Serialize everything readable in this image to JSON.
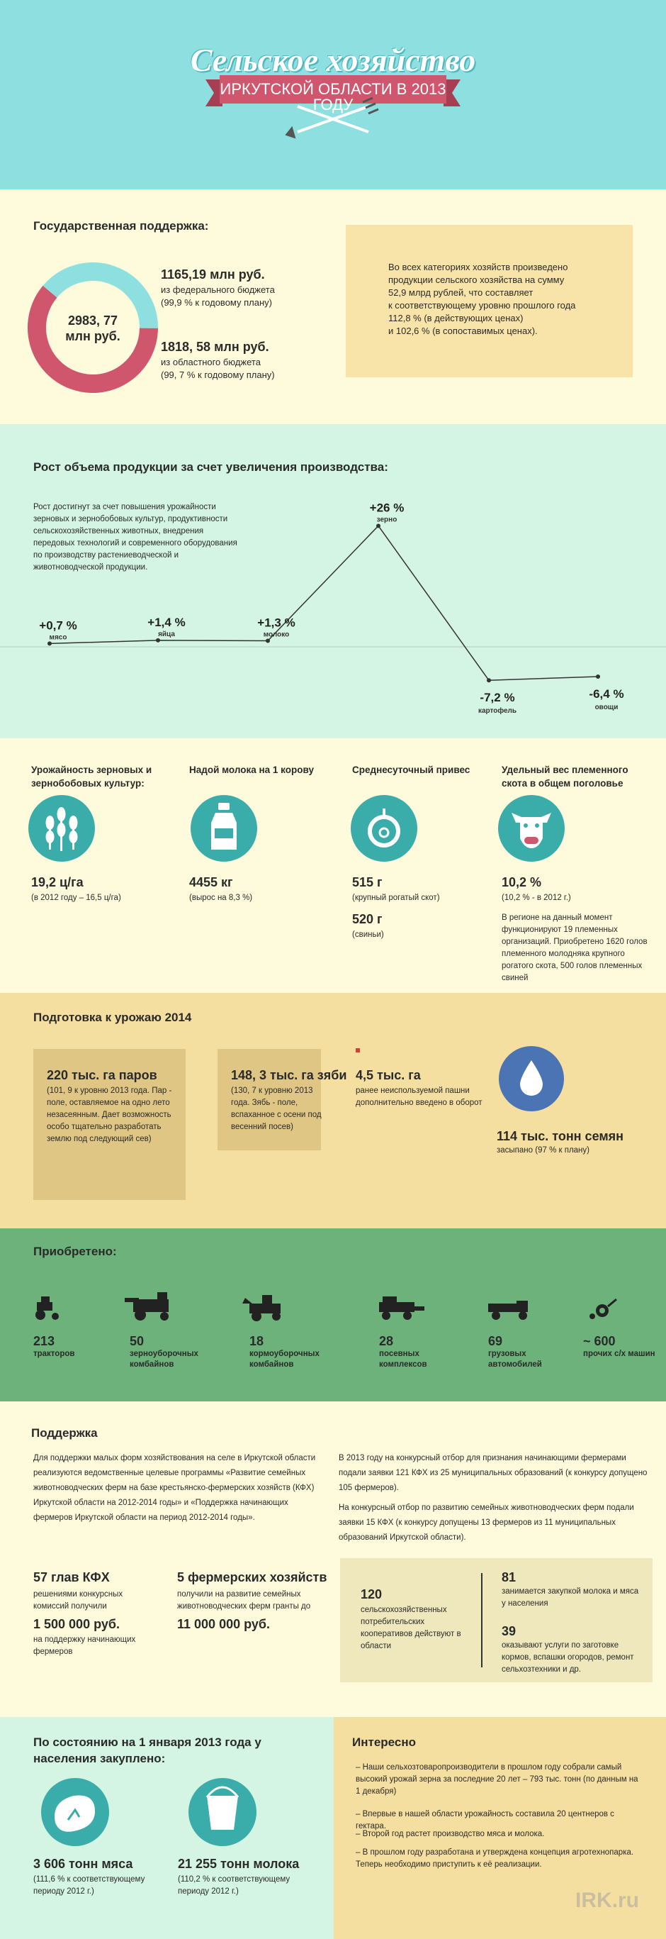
{
  "header": {
    "title": "Сельское хозяйство",
    "subtitle": "ИРКУТСКОЙ ОБЛАСТИ В 2013 ГОДУ"
  },
  "support": {
    "heading": "Государственная поддержка:",
    "donut": {
      "values": [
        1165.19,
        1818.58
      ],
      "colors": [
        "#8ee0e0",
        "#d0566e"
      ],
      "center": [
        "2983, 77",
        "млн руб."
      ]
    },
    "federal": {
      "amount": "1165,19 млн руб.",
      "source": "из федерального бюджета",
      "note": "(99,9 % к годовому плану)"
    },
    "regional": {
      "amount": "1818, 58 млн руб.",
      "source": "из областного бюджета",
      "note": "(99, 7 % к годовому плану)"
    },
    "box": {
      "lines": [
        "Во всех категориях хозяйств произведено",
        "продукции сельского хозяйства на сумму",
        "52,9 млрд рублей, что составляет",
        "к соответствующему уровню прошлого года",
        "112,8 % (в действующих ценах)",
        "и 102,6 % (в сопоставимых ценах)."
      ]
    }
  },
  "growth": {
    "heading": "Рост объема продукции за счет увеличения производства:",
    "description": [
      "Рост достигнут за счет повышения урожайности",
      "зерновых и зернобобовых культур, продуктивности",
      "сельскохозяйственных животных, внедрения",
      "передовых технологий и современного оборудования",
      "по производству растениеводческой и",
      "животноводческой продукции."
    ],
    "chart": {
      "type": "line",
      "categories": [
        "мясо",
        "яйца",
        "молоко",
        "зерно",
        "картофель",
        "овощи"
      ],
      "values": [
        0.7,
        1.4,
        1.3,
        26,
        -7.2,
        -6.4
      ],
      "value_labels": [
        "+0,7 %",
        "+1,4 %",
        "+1,3 %",
        "+26 %",
        "-7,2 %",
        "-6,4 %"
      ],
      "color": "#333333"
    }
  },
  "metrics": {
    "items": [
      {
        "heading": "Урожайность зерновых и зернобобовых культур:",
        "value": "19,2 ц/га",
        "note": "(в 2012 году – 16,5 ц/га)"
      },
      {
        "heading": "Надой молока на 1 корову",
        "value": "4455 кг",
        "note": "(вырос на 8,3 %)"
      },
      {
        "heading": "Среднесуточный привес",
        "value": "515 г",
        "note": "(крупный рогатый скот)",
        "value2": "520 г",
        "note2": "(свиньи)"
      },
      {
        "heading": "Удельный вес племенного скота в общем поголовье",
        "value": "10,2 %",
        "note": "(10,2 % - в 2012 г.)",
        "text": "В регионе на данный момент функционируют 19 племенных организаций. Приобретено 1620 голов племенного молодняка крупного рогатого скота, 500 голов племенных свиней"
      }
    ]
  },
  "harvest": {
    "heading": "Подготовка к урожаю 2014",
    "items": [
      {
        "title": "220 тыс. га паров",
        "text": "(101, 9 к уровню 2013 года. Пар - поле, оставляемое на одно лето незасеянным. Дает возможность особо тщательно разработать землю под следующий сев)"
      },
      {
        "title": "148, 3 тыс. га зяби",
        "text": "(130, 7 к уровню 2013 года. Зябь - поле, вспаханное с осени под весенний посев)"
      },
      {
        "title": "4,5 тыс. га",
        "text": "ранее неиспользуемой пашни дополнительно введено в оборот"
      },
      {
        "title": "114 тыс. тонн семян",
        "text": "засыпано (97 % к плану)"
      }
    ]
  },
  "acquired": {
    "heading": "Приобретено:",
    "items": [
      {
        "value": "213",
        "label": "тракторов"
      },
      {
        "value": "50",
        "label": "зерноуборочных комбайнов"
      },
      {
        "value": "18",
        "label": "кормоуборочных комбайнов"
      },
      {
        "value": "28",
        "label": "посевных комплексов"
      },
      {
        "value": "69",
        "label": "грузовых автомобилей"
      },
      {
        "value": "~ 600",
        "label": "прочих с/х машин"
      }
    ]
  },
  "farm_support": {
    "heading": "Поддержка",
    "left_text": "Для поддержки малых форм хозяйствования на селе в Иркутской области реализуются ведомственные целевые программы «Развитие семейных животноводческих ферм на базе крестьянско-фермерских хозяйств (КФХ) Иркутской области на 2012-2014 годы» и «Поддержка начинающих фермеров Иркутской области на период 2012-2014 годы».",
    "right_text": [
      "В 2013 году на конкурсный отбор для признания начинающими фермерами подали заявки 121 КФХ из 25 муниципальных образований (к конкурсу допущено 105 фермеров).",
      "На конкурсный отбор по развитию семейных животноводческих ферм подали заявки 15 КФХ (к конкурсу допущены 13 фермеров из 11 муниципальных образований Иркутской области)."
    ],
    "stats": [
      {
        "title": "57 глав КФХ",
        "text": "решениями конкурсных комиссий получили",
        "amount": "1 500 000 руб.",
        "amount_text": "на поддержку начинающих фермеров"
      },
      {
        "title": "5 фермерских хозяйств",
        "text": "получили на развитие семейных животноводческих ферм гранты до",
        "amount": "11 000 000 руб."
      }
    ],
    "coops": [
      {
        "value": "120",
        "text": "сельскохозяйственных потребительских кооперативов действуют в области"
      },
      {
        "value": "81",
        "text": "занимается закупкой молока и мяса у населения"
      },
      {
        "value": "39",
        "text": "оказывают услуги по заготовке кормов, вспашки огородов, ремонт сельхозтехники и др."
      }
    ]
  },
  "purchased": {
    "heading": "По состоянию на 1 января 2013 года у населения закуплено:",
    "items": [
      {
        "title": "3 606 тонн мяса",
        "note": "(111,6 % к соответствующему периоду 2012 г.)"
      },
      {
        "title": "21 255 тонн молока",
        "note": "(110,2 % к соответствующему периоду 2012 г.)"
      }
    ]
  },
  "interesting": {
    "heading": "Интересно",
    "items": [
      "– Наши сельхозтоваропроизводители в прошлом году собрали самый высокий урожай зерна за последние 20 лет – 793 тыс. тонн (по данным на 1 декабря)",
      "– Впервые в нашей области урожайность составила 20 центнеров с гектара.",
      "– Второй год растет производство мяса и молока.",
      "– В прошлом году разработана и утверждена концепция агротехнопарка. Теперь необходимо приступить к её реализации."
    ],
    "logo": "IRK.ru"
  }
}
